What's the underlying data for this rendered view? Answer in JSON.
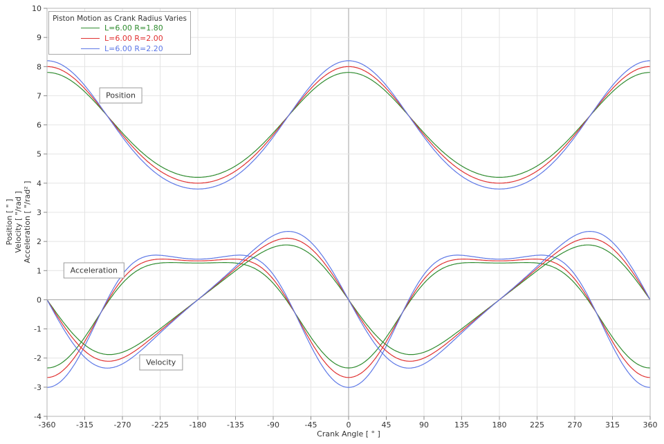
{
  "chart_data": {
    "type": "line",
    "title": "Piston Motion as Crank Radius Varies",
    "xlabel": "Crank Angle  [ ° ]",
    "ylabel_lines": [
      "Position  [ \" ]",
      "Velocity  [ \"/rad ]",
      "Acceleration  [ \"/rad² ]"
    ],
    "xlim": [
      -360,
      360
    ],
    "ylim": [
      -4,
      10
    ],
    "x_ticks": [
      -360,
      -315,
      -270,
      -225,
      -180,
      -135,
      -90,
      -45,
      0,
      45,
      90,
      135,
      180,
      225,
      270,
      315,
      360
    ],
    "y_ticks": [
      -4,
      -3,
      -2,
      -1,
      0,
      1,
      2,
      3,
      4,
      5,
      6,
      7,
      8,
      9,
      10
    ],
    "grid": true,
    "legend_position": "top-left",
    "model": "slider-crank, theta = crank angle in rad: position s = R*cos(t)+sqrt(L^2-R^2*sin(t)^2); velocity v = ds/dt; acceleration a = dv/dt; curves plotted for t from -360 to 360 deg",
    "series": [
      {
        "label": "L=6.00  R=1.80",
        "L": 6.0,
        "R": 1.8,
        "color": "#2e8b2e",
        "position_max": 7.8,
        "position_min": 4.2,
        "velocity_peak": 1.88,
        "acceleration_min": -2.34,
        "acceleration_at_180": 1.26
      },
      {
        "label": "L=6.00  R=2.00",
        "L": 6.0,
        "R": 2.0,
        "color": "#e03030",
        "position_max": 8.0,
        "position_min": 4.0,
        "velocity_peak": 2.11,
        "acceleration_min": -2.67,
        "acceleration_at_180": 1.33
      },
      {
        "label": "L=6.00  R=2.20",
        "L": 6.0,
        "R": 2.2,
        "color": "#5c77e6",
        "position_max": 8.2,
        "position_min": 3.8,
        "velocity_peak": 2.35,
        "acceleration_min": -3.01,
        "acceleration_at_180": 1.39
      }
    ],
    "curve_labels": [
      {
        "text": "Position",
        "x_deg": -272,
        "y_val": 7.0
      },
      {
        "text": "Acceleration",
        "x_deg": -304,
        "y_val": 1.0
      },
      {
        "text": "Velocity",
        "x_deg": -224,
        "y_val": -2.15
      }
    ]
  },
  "style_colors": {
    "grid": "#e4e4e4",
    "zero_axis": "#a0a0a0",
    "frame": "#b4b4b4",
    "tick": "#8a8a8a",
    "text": "#333333"
  }
}
